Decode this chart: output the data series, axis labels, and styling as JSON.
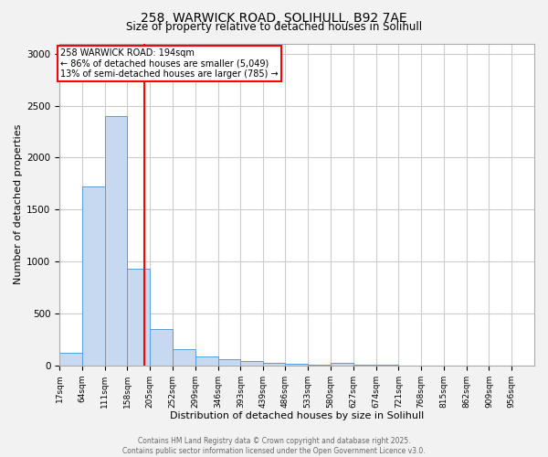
{
  "title_line1": "258, WARWICK ROAD, SOLIHULL, B92 7AE",
  "title_line2": "Size of property relative to detached houses in Solihull",
  "xlabel": "Distribution of detached houses by size in Solihull",
  "ylabel": "Number of detached properties",
  "bin_labels": [
    "17sqm",
    "64sqm",
    "111sqm",
    "158sqm",
    "205sqm",
    "252sqm",
    "299sqm",
    "346sqm",
    "393sqm",
    "439sqm",
    "486sqm",
    "533sqm",
    "580sqm",
    "627sqm",
    "674sqm",
    "721sqm",
    "768sqm",
    "815sqm",
    "862sqm",
    "909sqm",
    "956sqm"
  ],
  "bin_edges": [
    17,
    64,
    111,
    158,
    205,
    252,
    299,
    346,
    393,
    439,
    486,
    533,
    580,
    627,
    674,
    721,
    768,
    815,
    862,
    909,
    956
  ],
  "bar_heights": [
    120,
    1720,
    2400,
    930,
    350,
    160,
    90,
    60,
    40,
    20,
    15,
    10,
    25,
    5,
    3,
    2,
    2,
    1,
    1,
    1
  ],
  "bar_color": "#c6d9f0",
  "bar_edge_color": "#5b9bd5",
  "vline_x": 194,
  "vline_color": "red",
  "annotation_title": "258 WARWICK ROAD: 194sqm",
  "annotation_line1": "← 86% of detached houses are smaller (5,049)",
  "annotation_line2": "13% of semi-detached houses are larger (785) →",
  "ylim": [
    0,
    3100
  ],
  "yticks": [
    0,
    500,
    1000,
    1500,
    2000,
    2500,
    3000
  ],
  "footer_line1": "Contains HM Land Registry data © Crown copyright and database right 2025.",
  "footer_line2": "Contains public sector information licensed under the Open Government Licence v3.0.",
  "bg_color": "#f2f2f2",
  "plot_bg_color": "#ffffff",
  "grid_color": "#cccccc"
}
